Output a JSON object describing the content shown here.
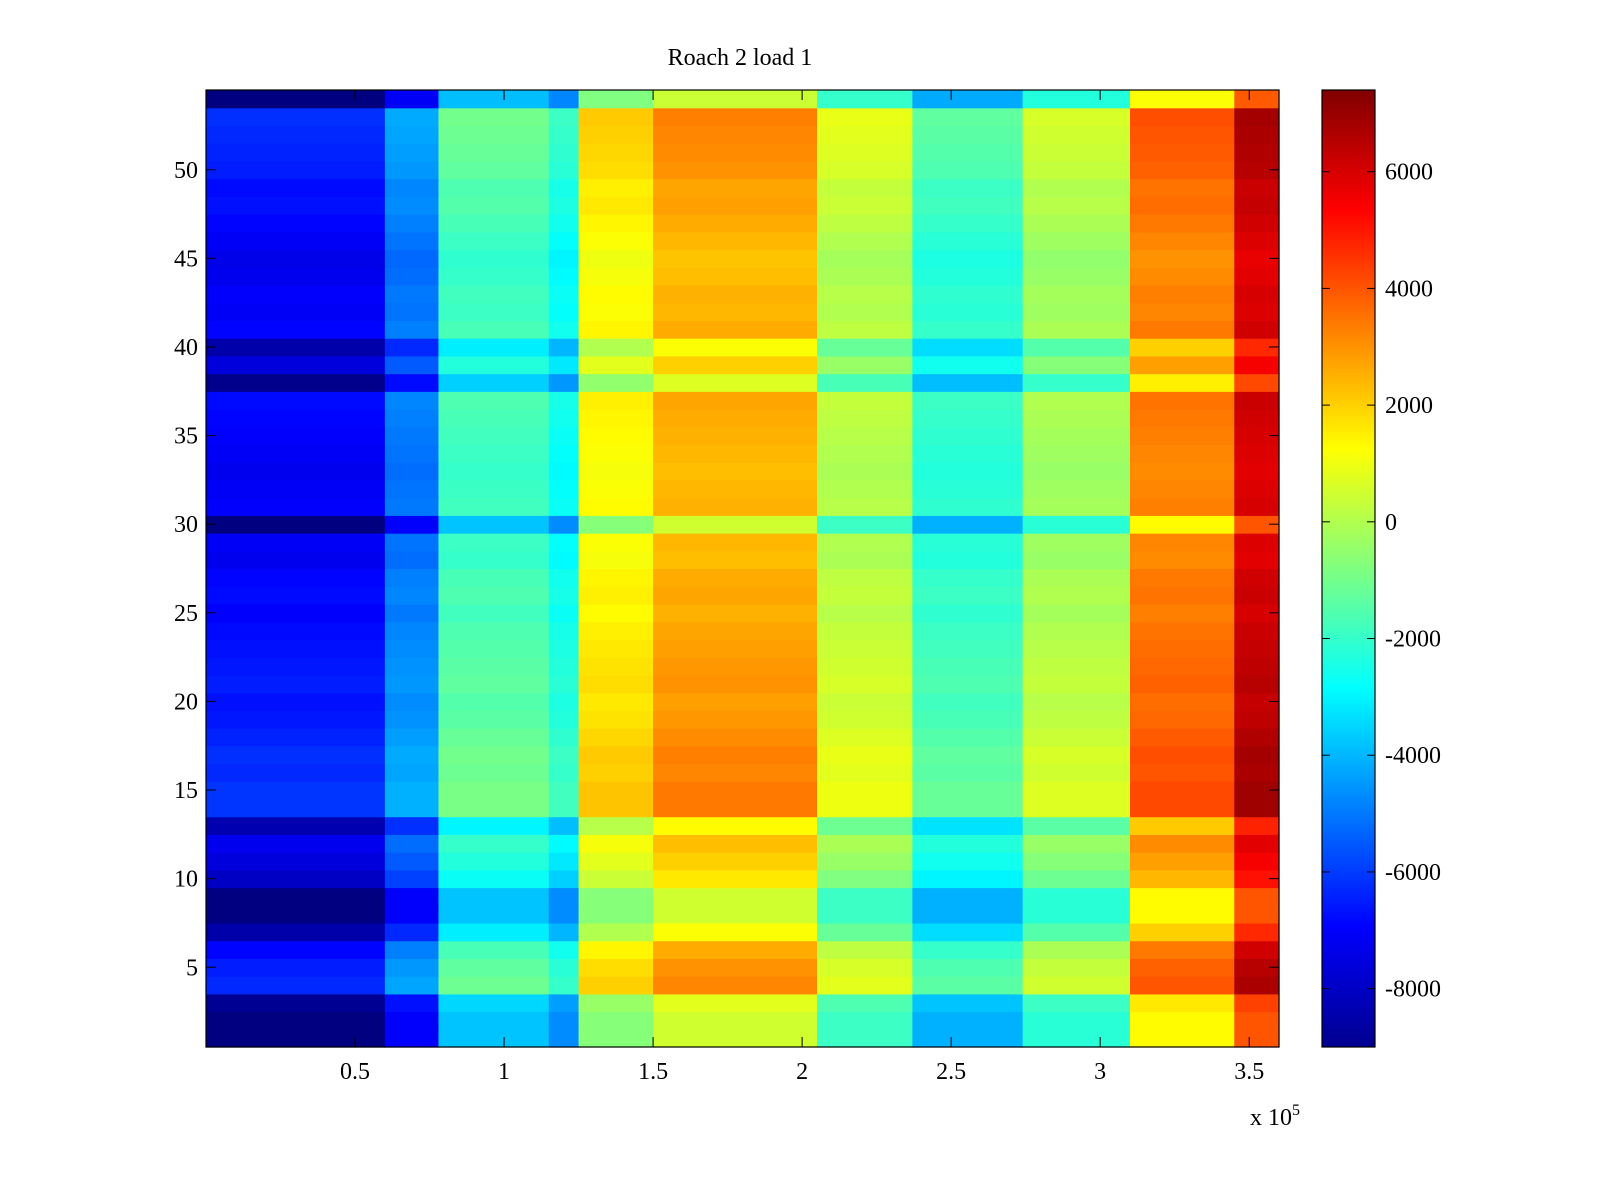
{
  "chart_data": {
    "type": "heatmap",
    "title": "Roach 2 load 1",
    "xlabel": "",
    "ylabel": "",
    "x_multiplier_label": {
      "base": "x 10",
      "exponent": "5"
    },
    "xlim": [
      0,
      3.6
    ],
    "ylim": [
      0.5,
      54.5
    ],
    "x_ticks": [
      {
        "value": 0.5,
        "label": "0.5"
      },
      {
        "value": 1,
        "label": "1"
      },
      {
        "value": 1.5,
        "label": "1.5"
      },
      {
        "value": 2,
        "label": "2"
      },
      {
        "value": 2.5,
        "label": "2.5"
      },
      {
        "value": 3,
        "label": "3"
      },
      {
        "value": 3.5,
        "label": "3.5"
      }
    ],
    "y_ticks": [
      {
        "value": 5,
        "label": "5"
      },
      {
        "value": 10,
        "label": "10"
      },
      {
        "value": 15,
        "label": "15"
      },
      {
        "value": 20,
        "label": "20"
      },
      {
        "value": 25,
        "label": "25"
      },
      {
        "value": 30,
        "label": "30"
      },
      {
        "value": 35,
        "label": "35"
      },
      {
        "value": 40,
        "label": "40"
      },
      {
        "value": 45,
        "label": "45"
      },
      {
        "value": 50,
        "label": "50"
      }
    ],
    "colorbar": {
      "colormap": "jet",
      "range": [
        -9000,
        7400
      ],
      "ticks": [
        {
          "value": 6000,
          "label": "6000"
        },
        {
          "value": 4000,
          "label": "4000"
        },
        {
          "value": 2000,
          "label": "2000"
        },
        {
          "value": 0,
          "label": "0"
        },
        {
          "value": -2000,
          "label": "-2000"
        },
        {
          "value": -4000,
          "label": "-4000"
        },
        {
          "value": -6000,
          "label": "-6000"
        },
        {
          "value": -8000,
          "label": "-8000"
        }
      ]
    },
    "rows": 54,
    "column_segments": [
      {
        "x_start": 0.0,
        "x_end": 0.6,
        "base": -7500
      },
      {
        "x_start": 0.6,
        "x_end": 0.78,
        "base": -5500
      },
      {
        "x_start": 0.78,
        "x_end": 1.15,
        "base": -2300
      },
      {
        "x_start": 1.15,
        "x_end": 1.25,
        "base": -3200
      },
      {
        "x_start": 1.25,
        "x_end": 1.5,
        "base": 800
      },
      {
        "x_start": 1.5,
        "x_end": 2.05,
        "base": 2000
      },
      {
        "x_start": 2.05,
        "x_end": 2.37,
        "base": -400
      },
      {
        "x_start": 2.37,
        "x_end": 2.74,
        "base": -2600
      },
      {
        "x_start": 2.74,
        "x_end": 3.1,
        "base": -700
      },
      {
        "x_start": 3.1,
        "x_end": 3.45,
        "base": 2800
      },
      {
        "x_start": 3.45,
        "x_end": 3.6,
        "base": 5500
      }
    ],
    "row_offsets": [
      -1500,
      -1500,
      -1200,
      1200,
      1000,
      600,
      -800,
      -1500,
      -1500,
      -400,
      0,
      300,
      -700,
      1400,
      1400,
      1200,
      1300,
      1100,
      900,
      800,
      1000,
      900,
      800,
      700,
      500,
      700,
      600,
      300,
      400,
      -1500,
      500,
      400,
      300,
      400,
      500,
      600,
      700,
      -1300,
      0,
      -800,
      600,
      400,
      500,
      300,
      200,
      400,
      600,
      800,
      700,
      1000,
      1100,
      1200,
      1300,
      -1600
    ]
  }
}
